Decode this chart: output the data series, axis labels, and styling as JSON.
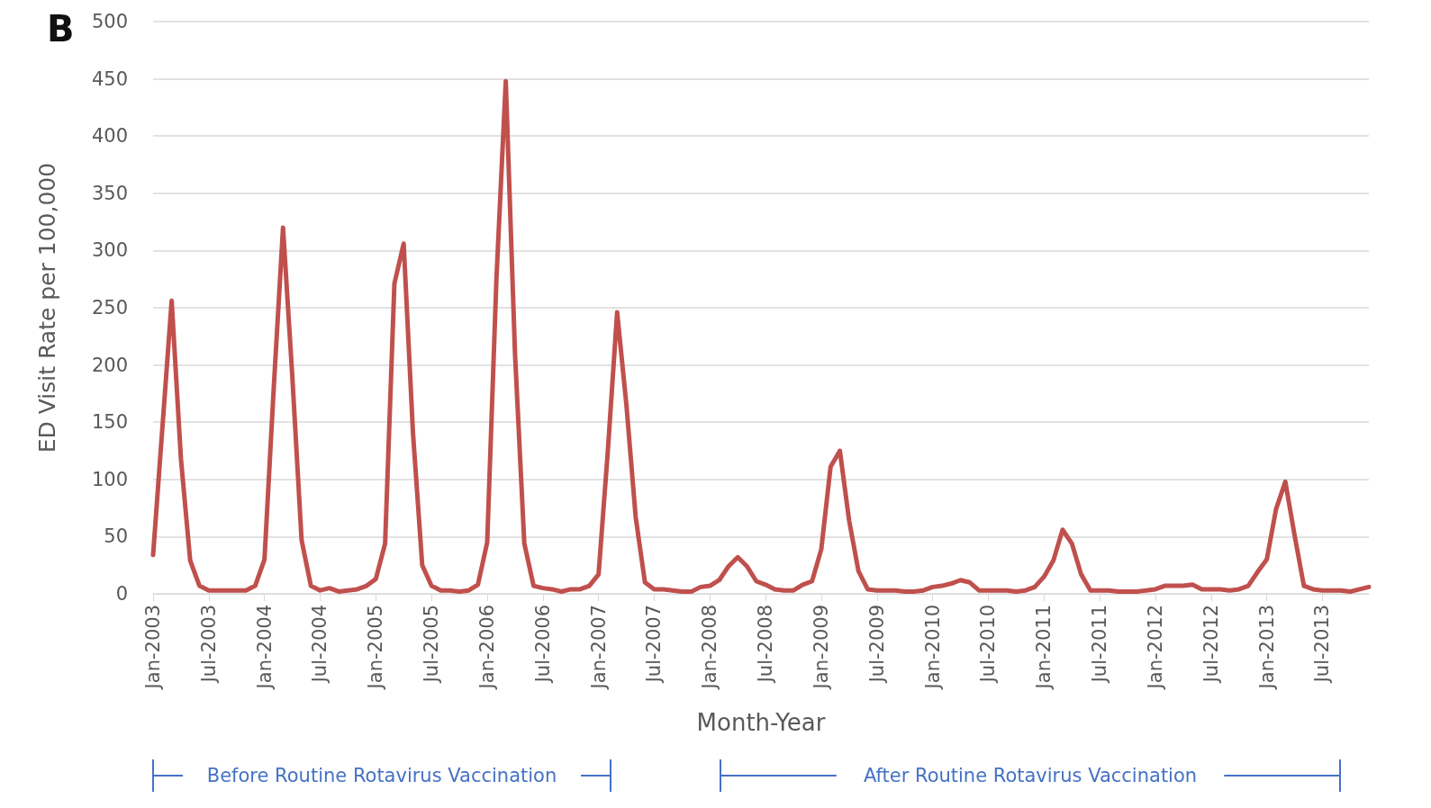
{
  "chart_data": {
    "type": "line",
    "xlabel": "Month-Year",
    "ylabel": "ED Visit Rate per 100,000",
    "categories": [
      "Jan-2003",
      null,
      null,
      null,
      null,
      null,
      "Jul-2003",
      null,
      null,
      null,
      null,
      null,
      "Jan-2004",
      null,
      null,
      null,
      null,
      null,
      "Jul-2004",
      null,
      null,
      null,
      null,
      null,
      "Jan-2005",
      null,
      null,
      null,
      null,
      null,
      "Jul-2005",
      null,
      null,
      null,
      null,
      null,
      "Jan-2006",
      null,
      null,
      null,
      null,
      null,
      "Jul-2006",
      null,
      null,
      null,
      null,
      null,
      "Jan-2007",
      null,
      null,
      null,
      null,
      null,
      "Jul-2007",
      null,
      null,
      null,
      null,
      null,
      "Jan-2008",
      null,
      null,
      null,
      null,
      null,
      "Jul-2008",
      null,
      null,
      null,
      null,
      null,
      "Jan-2009",
      null,
      null,
      null,
      null,
      null,
      "Jul-2009",
      null,
      null,
      null,
      null,
      null,
      "Jan-2010",
      null,
      null,
      null,
      null,
      null,
      "Jul-2010",
      null,
      null,
      null,
      null,
      null,
      "Jan-2011",
      null,
      null,
      null,
      null,
      null,
      "Jul-2011",
      null,
      null,
      null,
      null,
      null,
      "Jan-2012",
      null,
      null,
      null,
      null,
      null,
      "Jul-2012",
      null,
      null,
      null,
      null,
      null,
      "Jan-2013",
      null,
      null,
      null,
      null,
      null,
      "Jul-2013",
      null,
      null,
      null,
      null,
      null
    ],
    "series": [
      {
        "color": "#c0504d",
        "values": [
          34,
          145,
          256,
          118,
          29,
          7,
          3,
          3,
          3,
          3,
          3,
          7,
          30,
          180,
          320,
          190,
          47,
          7,
          3,
          5,
          2,
          3,
          4,
          7,
          13,
          44,
          271,
          306,
          141,
          25,
          7,
          3,
          3,
          2,
          3,
          8,
          45,
          276,
          448,
          209,
          44,
          7,
          5,
          4,
          2,
          4,
          4,
          7,
          17,
          125,
          246,
          165,
          67,
          10,
          4,
          4,
          3,
          2,
          2,
          6,
          7,
          12,
          24,
          32,
          24,
          11,
          8,
          4,
          3,
          3,
          8,
          11,
          39,
          111,
          125,
          64,
          20,
          4,
          3,
          3,
          3,
          2,
          2,
          3,
          6,
          7,
          9,
          12,
          10,
          3,
          3,
          3,
          3,
          2,
          3,
          6,
          15,
          29,
          56,
          44,
          17,
          3,
          3,
          3,
          2,
          2,
          2,
          3,
          4,
          7,
          7,
          7,
          8,
          4,
          4,
          4,
          3,
          4,
          7,
          19,
          30,
          74,
          98,
          51,
          7,
          4,
          3,
          3,
          3,
          2,
          4,
          6
        ]
      }
    ],
    "ylim": [
      0,
      500
    ],
    "yticks": [
      0,
      50,
      100,
      150,
      200,
      250,
      300,
      350,
      400,
      450,
      500
    ],
    "grid": "y",
    "marker": "none",
    "line_style": "solid",
    "annotations": [
      "B",
      "Before Routine Rotavirus Vaccination",
      "After Routine Rotavirus Vaccination"
    ]
  }
}
